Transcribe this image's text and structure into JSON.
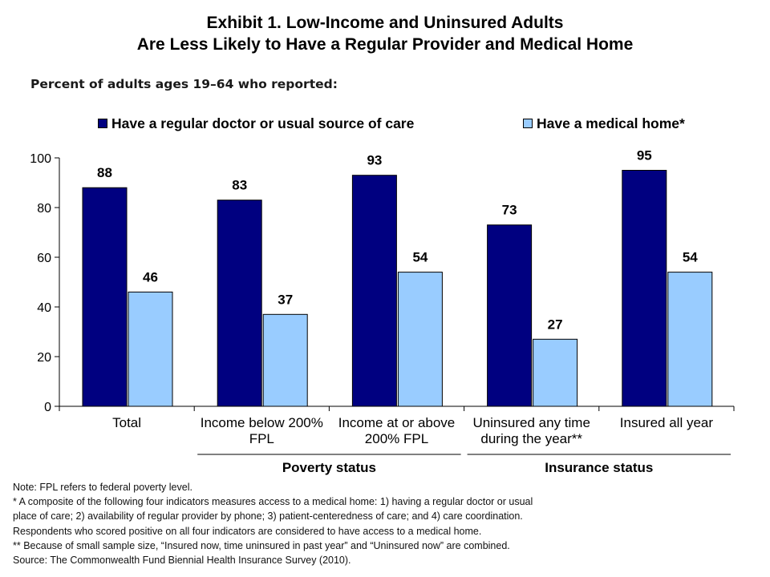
{
  "title_line1": "Exhibit 1. Low-Income and Uninsured Adults",
  "title_line2": "Are Less Likely to Have a Regular Provider and Medical Home",
  "subtitle": "Percent of adults ages 19–64 who reported:",
  "colors": {
    "dark": "#000080",
    "light": "#99ccff"
  },
  "chart_data": {
    "type": "bar",
    "categories": [
      [
        "Total"
      ],
      [
        "Income below 200%",
        "FPL"
      ],
      [
        "Income at or above",
        "200% FPL"
      ],
      [
        "Uninsured any time",
        "during the year**"
      ],
      [
        "Insured all year"
      ]
    ],
    "series": [
      {
        "name": "Have a regular doctor or usual source of care",
        "values": [
          88,
          83,
          93,
          73,
          95
        ]
      },
      {
        "name": "Have a medical home*",
        "values": [
          46,
          37,
          54,
          27,
          54
        ]
      }
    ],
    "ylim": [
      0,
      100
    ],
    "yticks": [
      0,
      20,
      40,
      60,
      80,
      100
    ],
    "legend_position": "top",
    "groups": [
      {
        "label": "Poverty status",
        "categories": [
          1,
          2
        ]
      },
      {
        "label": "Insurance status",
        "categories": [
          3,
          4
        ]
      }
    ],
    "grid": false
  },
  "notes": [
    "Note: FPL refers to federal poverty level.",
    "* A composite of the following four indicators measures access to a medical home: 1) having a regular doctor or usual",
    "place of care; 2) availability of regular provider by phone; 3) patient-centeredness of care; and 4) care coordination.",
    "Respondents who scored positive on all four indicators are considered to have access to a medical home.",
    "** Because of small sample size, “Insured now, time uninsured in past year” and “Uninsured now” are combined.",
    "Source: The Commonwealth Fund Biennial Health Insurance Survey (2010)."
  ]
}
